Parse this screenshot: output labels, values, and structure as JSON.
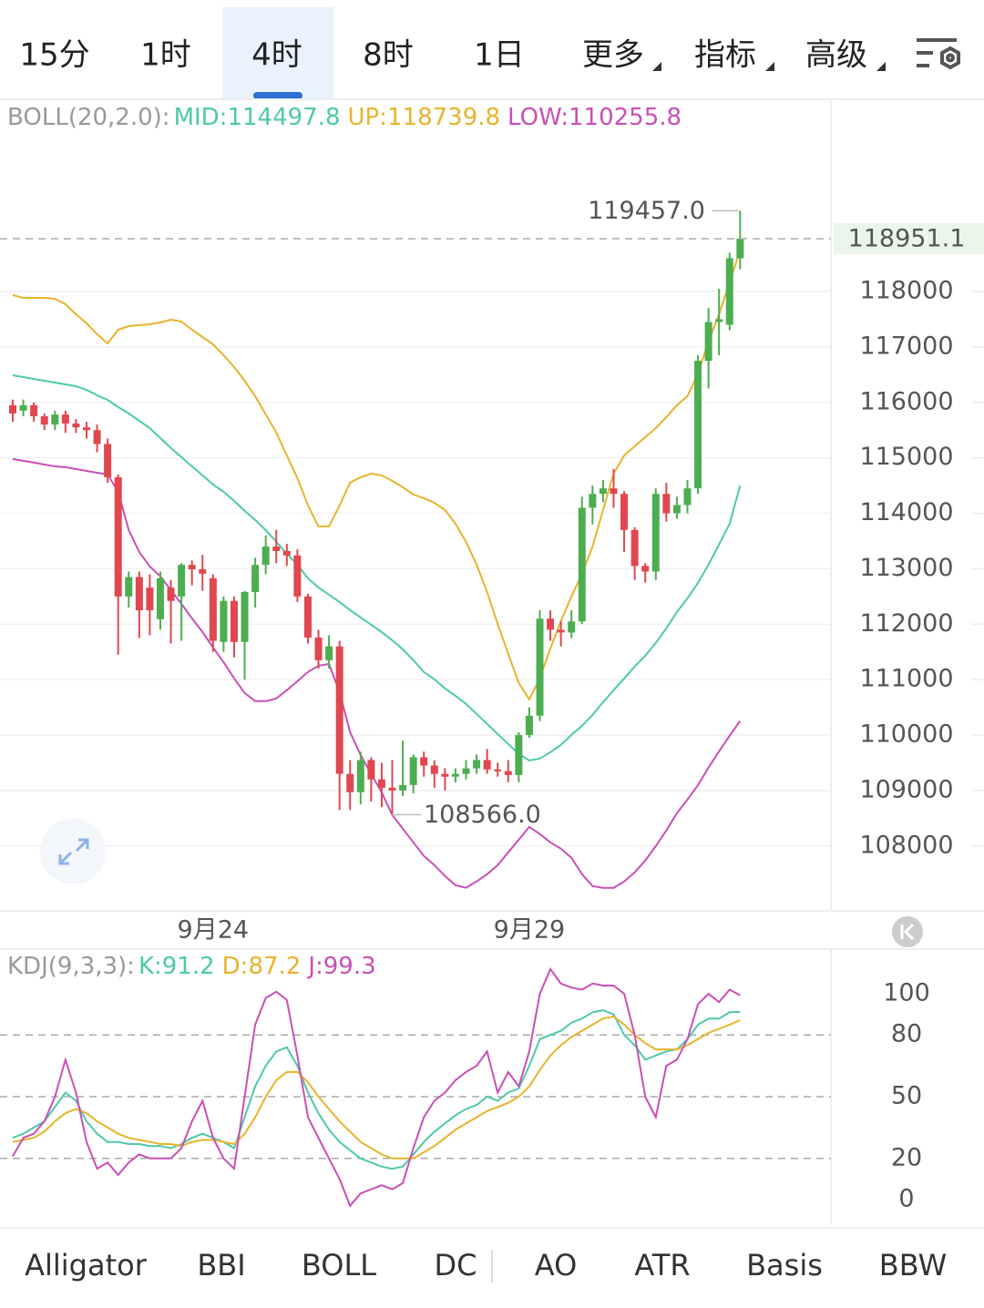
{
  "tabs": [
    "15分",
    "1时",
    "4时",
    "8时",
    "1日",
    "更多",
    "指标",
    "高级"
  ],
  "selected_tab": 2,
  "indicators": [
    "Alligator",
    "BBI",
    "BOLL",
    "DC",
    "AO",
    "ATR",
    "Basis",
    "BBW"
  ],
  "selected_indicator": 2,
  "chart_data": [
    {
      "type": "candlestick",
      "indicator": "BOLL(20,2.0):",
      "categories": [
        null,
        null,
        null,
        null,
        null,
        null,
        null,
        null,
        null,
        null,
        null,
        null,
        null,
        null,
        null,
        null,
        null,
        null,
        null,
        "9月24",
        null,
        null,
        null,
        null,
        null,
        null,
        null,
        null,
        null,
        null,
        null,
        null,
        null,
        null,
        null,
        null,
        null,
        null,
        null,
        null,
        null,
        null,
        null,
        null,
        null,
        null,
        null,
        null,
        null,
        "9月29",
        null,
        null,
        null,
        null,
        null,
        null,
        null,
        null,
        null,
        null,
        null,
        null,
        null,
        null,
        null,
        null,
        null,
        null,
        null,
        null
      ],
      "open": [
        115950,
        115850,
        115950,
        115750,
        115600,
        115780,
        115620,
        115550,
        115500,
        115250,
        114650,
        112500,
        112850,
        112660,
        112090,
        112660,
        112500,
        113070,
        112990,
        112830,
        111680,
        112420,
        111680,
        112580,
        113070,
        113400,
        113320,
        113240,
        112500,
        111760,
        111350,
        111600,
        109300,
        108970,
        109550,
        109200,
        109050,
        109000,
        109100,
        109600,
        109450,
        109300,
        109250,
        109300,
        109400,
        109550,
        109380,
        109350,
        109280,
        110000,
        110350,
        112100,
        111900,
        111850,
        112050,
        114100,
        114350,
        114450,
        114350,
        113700,
        113050,
        112950,
        114350,
        114000,
        114150,
        114450,
        116750,
        117450,
        117400,
        118600
      ],
      "close": [
        115800,
        115950,
        115750,
        115600,
        115780,
        115620,
        115550,
        115500,
        115250,
        114650,
        112500,
        112850,
        112250,
        112250,
        112830,
        112420,
        113070,
        112990,
        112910,
        111700,
        112420,
        111680,
        112580,
        113070,
        113400,
        113320,
        113240,
        112500,
        111760,
        111350,
        111600,
        109300,
        108970,
        109550,
        109200,
        109050,
        109000,
        109100,
        109600,
        109450,
        109300,
        109250,
        109300,
        109400,
        109550,
        109380,
        109350,
        109280,
        110000,
        110350,
        112100,
        111900,
        111850,
        112050,
        114100,
        114350,
        114450,
        114350,
        113700,
        113050,
        112950,
        114350,
        114000,
        114150,
        114450,
        116750,
        117450,
        117500,
        118600,
        118951.1
      ],
      "high": [
        116050,
        116050,
        116000,
        115800,
        115850,
        115850,
        115700,
        115650,
        115600,
        115350,
        114700,
        112950,
        112950,
        112900,
        112950,
        112800,
        113100,
        113150,
        113250,
        112900,
        112500,
        112500,
        112600,
        113200,
        113600,
        113700,
        113450,
        113350,
        112550,
        111900,
        111800,
        111700,
        109550,
        109700,
        109600,
        109500,
        109550,
        109900,
        109650,
        109700,
        109550,
        109400,
        109400,
        109550,
        109650,
        109750,
        109500,
        109550,
        110050,
        110500,
        112250,
        112250,
        112050,
        112250,
        114300,
        114500,
        114600,
        114800,
        114400,
        113750,
        113100,
        114450,
        114550,
        114300,
        114600,
        116850,
        117700,
        118050,
        118700,
        119457.0
      ],
      "low": [
        115650,
        115750,
        115650,
        115500,
        115500,
        115450,
        115450,
        115350,
        115100,
        114550,
        111450,
        112300,
        111750,
        111800,
        111900,
        111650,
        111700,
        112700,
        112600,
        111500,
        111500,
        111400,
        111000,
        112300,
        112900,
        113100,
        113050,
        112400,
        111650,
        111200,
        111200,
        108650,
        108650,
        108750,
        108800,
        108700,
        108566.0,
        108900,
        108950,
        109250,
        109050,
        109000,
        109150,
        109200,
        109300,
        109300,
        109250,
        109150,
        109150,
        109950,
        110250,
        111700,
        111600,
        111750,
        112000,
        113800,
        114200,
        114100,
        113300,
        112800,
        112750,
        112800,
        113850,
        113900,
        114000,
        114350,
        116250,
        116850,
        117300,
        118400
      ],
      "up_color": "#4cae50",
      "down_color": "#e0474f",
      "series": [
        {
          "name": "MID:",
          "color": "#4ec9a8",
          "values": [
            116489,
            116456,
            116424,
            116391,
            116358,
            116325,
            116292,
            116227,
            116128,
            116046,
            115915,
            115800,
            115668,
            115537,
            115356,
            115176,
            115012,
            114847,
            114683,
            114519,
            114388,
            114223,
            114043,
            113879,
            113698,
            113485,
            113271,
            113074,
            112828,
            112663,
            112532,
            112401,
            112253,
            112122,
            111990,
            111859,
            111711,
            111547,
            111350,
            111137,
            111005,
            110841,
            110709,
            110562,
            110381,
            110200,
            110020,
            109839,
            109659,
            109544,
            109576,
            109691,
            109823,
            110003,
            110167,
            110365,
            110595,
            110808,
            111022,
            111235,
            111432,
            111662,
            111925,
            112220,
            112466,
            112745,
            113074,
            113435,
            113813,
            114497.8
          ]
        },
        {
          "name": "UP:",
          "color": "#e8b32c",
          "values": [
            117934,
            117885,
            117885,
            117885,
            117869,
            117770,
            117590,
            117425,
            117228,
            117064,
            117310,
            117376,
            117392,
            117409,
            117442,
            117491,
            117458,
            117310,
            117179,
            117048,
            116851,
            116637,
            116391,
            116112,
            115783,
            115455,
            115044,
            114634,
            114141,
            113764,
            113764,
            114141,
            114552,
            114650,
            114716,
            114683,
            114585,
            114470,
            114338,
            114273,
            114190,
            114059,
            113813,
            113485,
            113074,
            112581,
            112007,
            111465,
            110939,
            110644,
            111022,
            111563,
            112056,
            112499,
            112910,
            113402,
            114059,
            114716,
            115044,
            115209,
            115373,
            115537,
            115734,
            115948,
            116112,
            116522,
            117097,
            117590,
            118164,
            118739.8
          ]
        },
        {
          "name": "LOW:",
          "color": "#c94fb5",
          "values": [
            114979,
            114946,
            114913,
            114880,
            114847,
            114831,
            114798,
            114765,
            114732,
            114700,
            114388,
            113698,
            113304,
            113041,
            112861,
            112614,
            112368,
            112105,
            111859,
            111580,
            111317,
            111022,
            110759,
            110611,
            110611,
            110660,
            110808,
            110972,
            111137,
            111251,
            111284,
            110775,
            110053,
            109642,
            109297,
            108969,
            108559,
            108312,
            108066,
            107820,
            107655,
            107458,
            107294,
            107245,
            107360,
            107491,
            107655,
            107885,
            108115,
            108345,
            108214,
            108066,
            107951,
            107787,
            107491,
            107277,
            107245,
            107245,
            107360,
            107524,
            107738,
            107998,
            108279,
            108591,
            108837,
            109100,
            109412,
            109708,
            109987,
            110255.8
          ]
        }
      ],
      "ylim": [
        106830,
        121450
      ],
      "yticks": [
        118000,
        117000,
        116000,
        115000,
        114000,
        113000,
        112000,
        111000,
        110000,
        109000,
        108000
      ],
      "current_price": 118951.1,
      "annotations": [
        {
          "value": 119457,
          "label": "119457.0"
        },
        {
          "value": 108566,
          "label": "108566.0"
        }
      ]
    },
    {
      "type": "line",
      "indicator": "KDJ(9,3,3):",
      "series": [
        {
          "name": "K:",
          "color": "#4ec9a8",
          "values": [
            30,
            32,
            35,
            38,
            45,
            52,
            48,
            38,
            32,
            28,
            28,
            27,
            27,
            26,
            26,
            25,
            27,
            30,
            32,
            30,
            28,
            25,
            40,
            55,
            65,
            72,
            74,
            65,
            52,
            42,
            34,
            28,
            24,
            20,
            18,
            16,
            15,
            16,
            22,
            28,
            33,
            37,
            41,
            44,
            46,
            50,
            48,
            52,
            54,
            65,
            78,
            80,
            82,
            86,
            88,
            91,
            92,
            90,
            80,
            75,
            68,
            70,
            72,
            73,
            78,
            85,
            88,
            88,
            91,
            91.2
          ]
        },
        {
          "name": "D:",
          "color": "#e8b32c",
          "values": [
            28,
            29,
            30,
            33,
            38,
            42,
            44,
            42,
            38,
            35,
            32,
            30,
            29,
            28,
            27,
            27,
            26,
            28,
            29,
            29,
            28,
            27,
            32,
            40,
            50,
            58,
            62,
            62,
            57,
            50,
            44,
            38,
            33,
            28,
            25,
            22,
            20,
            20,
            20,
            23,
            26,
            30,
            34,
            37,
            40,
            43,
            45,
            47,
            50,
            55,
            63,
            70,
            75,
            79,
            82,
            85,
            88,
            89,
            85,
            80,
            76,
            73,
            73,
            73,
            75,
            78,
            81,
            83,
            85,
            87.2
          ]
        },
        {
          "name": "J:",
          "color": "#c94fb5",
          "values": [
            21,
            30,
            32,
            38,
            50,
            68,
            52,
            28,
            15,
            18,
            12,
            18,
            22,
            20,
            20,
            20,
            25,
            38,
            48,
            30,
            20,
            15,
            50,
            85,
            98,
            101,
            97,
            70,
            40,
            30,
            20,
            10,
            -3,
            3,
            5,
            7,
            5,
            8,
            25,
            40,
            48,
            52,
            58,
            62,
            65,
            72,
            52,
            62,
            55,
            72,
            100,
            112,
            105,
            103,
            102,
            105,
            104,
            104,
            100,
            80,
            50,
            40,
            65,
            68,
            78,
            95,
            100,
            96,
            102,
            99.3
          ]
        }
      ],
      "ylim": [
        -12.4,
        122.6
      ],
      "yticks": [
        0,
        20,
        50,
        80,
        100
      ],
      "grid": "dashed"
    }
  ]
}
